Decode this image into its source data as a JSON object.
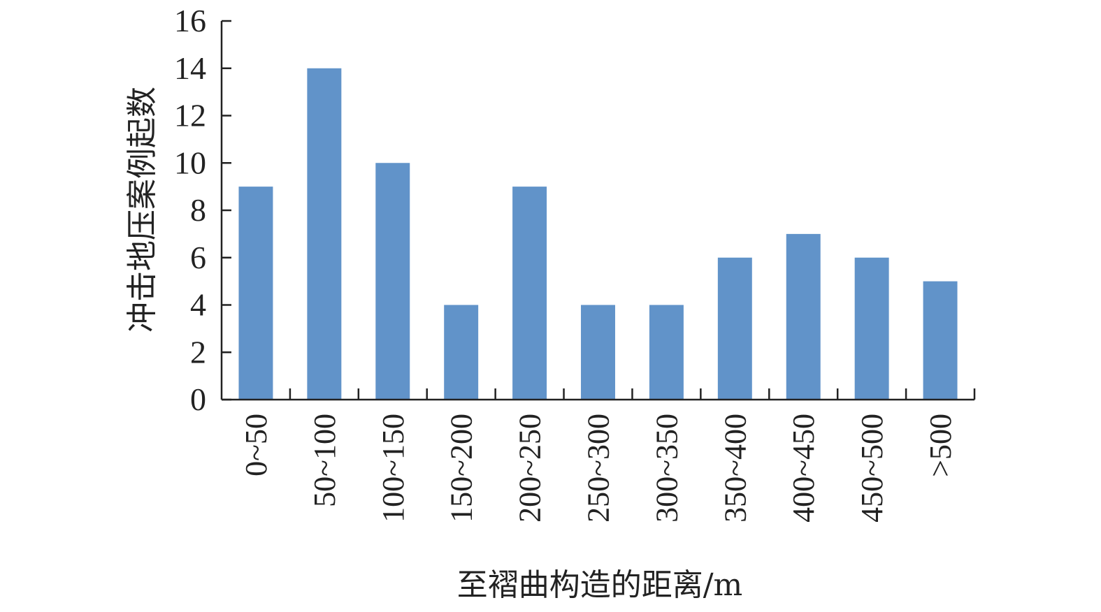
{
  "chart_data": {
    "type": "bar",
    "categories": [
      "0~50",
      "50~100",
      "100~150",
      "150~200",
      "200~250",
      "250~300",
      "300~350",
      "350~400",
      "400~450",
      "450~500",
      ">500"
    ],
    "values": [
      9,
      14,
      10,
      4,
      9,
      4,
      4,
      6,
      7,
      6,
      5
    ],
    "yticks": [
      0,
      2,
      4,
      6,
      8,
      10,
      12,
      14,
      16
    ],
    "ylim": [
      0,
      16
    ],
    "xlabel": "至褶曲构造的距离/m",
    "ylabel": "冲击地压案例起数",
    "title": "",
    "grid": false,
    "legend": "none",
    "colors": {
      "bar": "#6193c9",
      "axis": "#222222"
    }
  }
}
